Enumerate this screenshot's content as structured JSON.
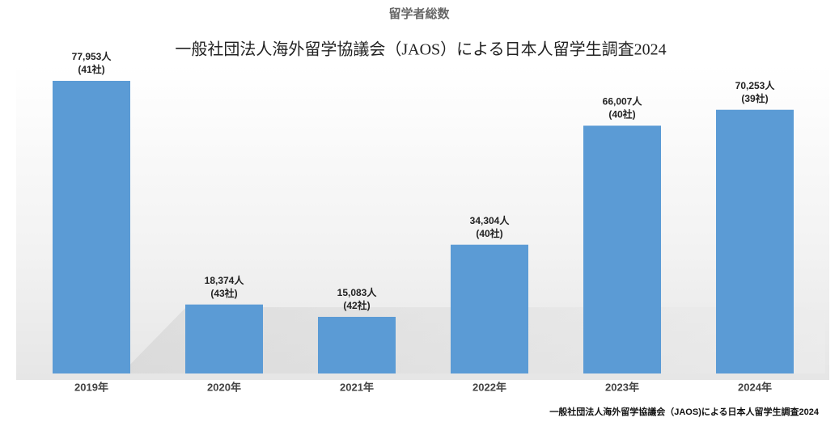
{
  "chart_data": {
    "type": "bar",
    "title": "留学者総数",
    "subtitle": "一般社団法人海外留学協議会（JAOS）による日本人留学生調査2024",
    "source": "一般社団法人海外留学協議会（JAOS)による日本人留学生調査2024",
    "categories": [
      "2019年",
      "2020年",
      "2021年",
      "2022年",
      "2023年",
      "2024年"
    ],
    "values": [
      77953,
      18374,
      15083,
      34304,
      66007,
      70253
    ],
    "value_labels": [
      "77,953人",
      "18,374人",
      "15,083人",
      "34,304人",
      "66,007人",
      "70,253人"
    ],
    "companies": [
      "(41社)",
      "(43社)",
      "(42社)",
      "(40社)",
      "(40社)",
      "(39社)"
    ],
    "color": "#5b9bd5"
  }
}
